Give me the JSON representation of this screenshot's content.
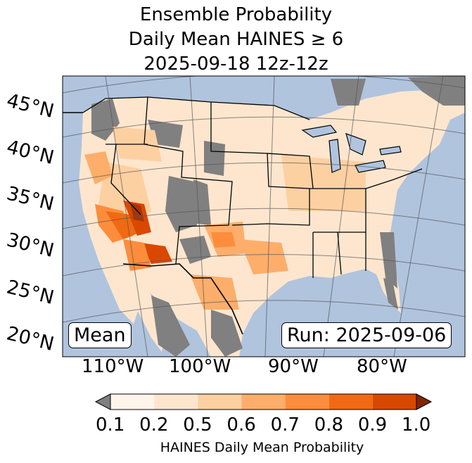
{
  "title": {
    "line1": "Ensemble Probability",
    "line2": "Daily Mean HAINES ≥ 6",
    "line3": "2025-09-18 12z-12z"
  },
  "map": {
    "ocean_color": "#b0c4de",
    "missing_color": "#808080",
    "lat_labels": [
      "45°N",
      "40°N",
      "35°N",
      "30°N",
      "25°N",
      "20°N"
    ],
    "lon_labels": [
      "110°W",
      "100°W",
      "90°W",
      "80°W"
    ],
    "mean_box": "Mean",
    "run_box": "Run: 2025-09-06"
  },
  "colorbar": {
    "ticks": [
      "0.1",
      "0.2",
      "0.5",
      "0.6",
      "0.7",
      "0.8",
      "0.9",
      "1.0"
    ],
    "colors": [
      "#fff5eb",
      "#fee6ce",
      "#fdd0a2",
      "#fdae6b",
      "#fd8d3c",
      "#f16913",
      "#d94801",
      "#a63603"
    ],
    "under_color": "#808080",
    "over_color": "#7f2704",
    "label": "HAINES Daily Mean Probability"
  }
}
